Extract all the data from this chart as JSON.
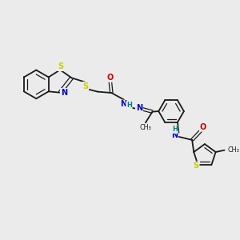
{
  "background_color": "#ebebeb",
  "bond_color": "#1a1a1a",
  "atom_colors": {
    "S": "#cccc00",
    "N": "#0000cc",
    "O": "#cc0000",
    "H": "#008080",
    "C": "#1a1a1a"
  },
  "figsize": [
    3.0,
    3.0
  ],
  "dpi": 100
}
